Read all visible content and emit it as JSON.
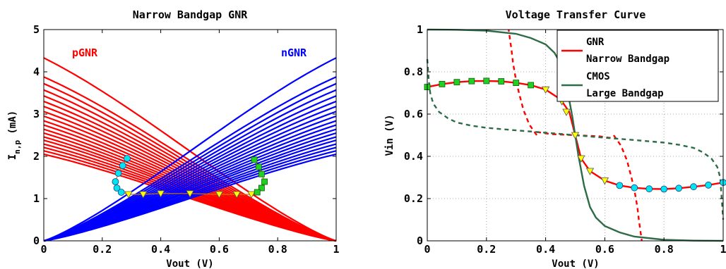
{
  "chart_data": [
    {
      "type": "line",
      "title": "Narrow Bandgap GNR",
      "xlabel": "Vout (V)",
      "ylabel": "I",
      "ylabel_sub": "n,p",
      "ylabel_unit": " (mA)",
      "xlim": [
        0,
        1
      ],
      "ylim": [
        0,
        5
      ],
      "x_ticks": [
        0,
        0.2,
        0.4,
        0.6,
        0.8,
        1
      ],
      "x_tick_labels": [
        "0",
        "0.2",
        "0.4",
        "0.6",
        "0.8",
        "1"
      ],
      "y_ticks": [
        0,
        1,
        2,
        3,
        4,
        5
      ],
      "y_tick_labels": [
        "0",
        "1",
        "2",
        "3",
        "4",
        "5"
      ],
      "grid": false,
      "series": [
        {
          "name": "pGNR",
          "color": "#ff0000",
          "start_values_at_x0": [
            2.05,
            2.13,
            2.21,
            2.29,
            2.38,
            2.46,
            2.55,
            2.64,
            2.74,
            2.84,
            2.95,
            3.06,
            3.18,
            3.3,
            3.43,
            3.57,
            3.72,
            3.88,
            4.33
          ],
          "end_value_at_x1": 0
        },
        {
          "name": "nGNR",
          "color": "#0000ff",
          "start_value_at_x0": 0,
          "end_values_at_x1": [
            2.05,
            2.13,
            2.21,
            2.29,
            2.38,
            2.46,
            2.55,
            2.64,
            2.74,
            2.84,
            2.95,
            3.06,
            3.18,
            3.3,
            3.43,
            3.57,
            3.72,
            3.88,
            4.33
          ]
        }
      ],
      "markers": {
        "cyan_circles": [
          [
            0.285,
            1.95
          ],
          [
            0.27,
            1.78
          ],
          [
            0.255,
            1.6
          ],
          [
            0.245,
            1.4
          ],
          [
            0.25,
            1.25
          ],
          [
            0.265,
            1.15
          ]
        ],
        "yellow_triangles": [
          [
            0.29,
            1.1
          ],
          [
            0.34,
            1.1
          ],
          [
            0.4,
            1.12
          ],
          [
            0.5,
            1.12
          ],
          [
            0.6,
            1.1
          ],
          [
            0.66,
            1.1
          ],
          [
            0.71,
            1.1
          ]
        ],
        "green_squares": [
          [
            0.72,
            1.92
          ],
          [
            0.735,
            1.75
          ],
          [
            0.745,
            1.58
          ],
          [
            0.755,
            1.4
          ],
          [
            0.745,
            1.25
          ],
          [
            0.73,
            1.15
          ]
        ]
      },
      "annotations": [
        {
          "text": "pGNR",
          "x": 0.14,
          "y": 4.45,
          "color": "#ff0000"
        },
        {
          "text": "nGNR",
          "x": 0.86,
          "y": 4.45,
          "color": "#0000ff"
        }
      ]
    },
    {
      "type": "line",
      "title": "Voltage Transfer Curve",
      "xlabel": "Vout (V)",
      "ylabel": "Vin (V)",
      "xlim": [
        0,
        1
      ],
      "ylim": [
        0,
        1
      ],
      "x_ticks": [
        0,
        0.2,
        0.4,
        0.6,
        0.8,
        1
      ],
      "x_tick_labels": [
        "0",
        "0.2",
        "0.4",
        "0.6",
        "0.8",
        "1"
      ],
      "y_ticks": [
        0,
        0.2,
        0.4,
        0.6,
        0.8,
        1
      ],
      "y_tick_labels": [
        "0",
        "0.2",
        "0.4",
        "0.6",
        "0.8",
        "1"
      ],
      "grid": true,
      "legend": {
        "placement": "top-right",
        "entries": [
          {
            "lines": [
              "GNR",
              "Narrow Bandgap"
            ],
            "color": "#ff0000"
          },
          {
            "lines": [
              "CMOS",
              "Large Bandgap"
            ],
            "color": "#2e6b47"
          }
        ]
      },
      "series": [
        {
          "name": "GNR Narrow Bandgap",
          "color": "#ff0000",
          "x": [
            0,
            0.05,
            0.1,
            0.15,
            0.2,
            0.25,
            0.3,
            0.35,
            0.4,
            0.45,
            0.48,
            0.5,
            0.52,
            0.55,
            0.6,
            0.65,
            0.7,
            0.75,
            0.8,
            0.85,
            0.9,
            0.95,
            1.0
          ],
          "y": [
            0.728,
            0.742,
            0.751,
            0.756,
            0.757,
            0.755,
            0.748,
            0.737,
            0.716,
            0.67,
            0.61,
            0.5,
            0.39,
            0.33,
            0.285,
            0.262,
            0.251,
            0.246,
            0.245,
            0.249,
            0.256,
            0.264,
            0.276
          ]
        },
        {
          "name": "GNR pGNR metastable",
          "color": "#ff0000",
          "dashed": true,
          "x": [
            0.37,
            0.345,
            0.325,
            0.31,
            0.3,
            0.29,
            0.285,
            0.28,
            0.275
          ],
          "y": [
            0.5,
            0.55,
            0.62,
            0.7,
            0.76,
            0.84,
            0.9,
            0.95,
            1.0
          ]
        },
        {
          "name": "GNR center",
          "color": "#ff0000",
          "dashed": true,
          "x": [
            0.37,
            0.42,
            0.5,
            0.58,
            0.63
          ],
          "y": [
            0.515,
            0.505,
            0.5,
            0.495,
            0.485
          ]
        },
        {
          "name": "GNR nGNR metastable",
          "color": "#ff0000",
          "dashed": true,
          "x": [
            0.63,
            0.655,
            0.675,
            0.69,
            0.7,
            0.71,
            0.715,
            0.72,
            0.725
          ],
          "y": [
            0.5,
            0.45,
            0.38,
            0.3,
            0.24,
            0.16,
            0.1,
            0.05,
            0.0
          ]
        },
        {
          "name": "CMOS Large Bandgap",
          "color": "#2e6b47",
          "x": [
            0,
            0.1,
            0.2,
            0.3,
            0.35,
            0.4,
            0.43,
            0.45,
            0.47,
            0.49,
            0.5,
            0.51,
            0.53,
            0.55,
            0.57,
            0.6,
            0.65,
            0.7,
            0.8,
            0.9,
            1.0
          ],
          "y": [
            1.0,
            0.999,
            0.995,
            0.98,
            0.96,
            0.93,
            0.89,
            0.84,
            0.74,
            0.59,
            0.5,
            0.41,
            0.26,
            0.16,
            0.11,
            0.07,
            0.04,
            0.02,
            0.005,
            0.001,
            0.0
          ]
        },
        {
          "name": "CMOS dashed lower",
          "color": "#2e6b47",
          "dashed": true,
          "x": [
            0.0,
            0.005,
            0.01,
            0.02,
            0.04,
            0.07,
            0.1,
            0.15,
            0.2,
            0.3,
            0.4,
            0.5
          ],
          "y": [
            0.86,
            0.76,
            0.7,
            0.65,
            0.61,
            0.58,
            0.56,
            0.545,
            0.535,
            0.523,
            0.512,
            0.5
          ]
        },
        {
          "name": "CMOS dashed upper",
          "color": "#2e6b47",
          "dashed": true,
          "x": [
            0.5,
            0.6,
            0.7,
            0.8,
            0.85,
            0.9,
            0.93,
            0.96,
            0.98,
            0.99,
            1.0
          ],
          "y": [
            0.5,
            0.488,
            0.477,
            0.465,
            0.455,
            0.44,
            0.42,
            0.39,
            0.35,
            0.3,
            0.1
          ]
        }
      ],
      "markers": {
        "green_squares": [
          [
            0.0,
            0.728
          ],
          [
            0.05,
            0.742
          ],
          [
            0.1,
            0.751
          ],
          [
            0.15,
            0.756
          ],
          [
            0.2,
            0.757
          ],
          [
            0.25,
            0.755
          ],
          [
            0.3,
            0.748
          ],
          [
            0.35,
            0.737
          ]
        ],
        "yellow_triangles": [
          [
            0.4,
            0.716
          ],
          [
            0.455,
            0.66
          ],
          [
            0.47,
            0.61
          ],
          [
            0.5,
            0.5
          ],
          [
            0.52,
            0.39
          ],
          [
            0.55,
            0.33
          ],
          [
            0.6,
            0.285
          ]
        ],
        "cyan_circles": [
          [
            0.65,
            0.262
          ],
          [
            0.7,
            0.251
          ],
          [
            0.75,
            0.246
          ],
          [
            0.8,
            0.245
          ],
          [
            0.85,
            0.249
          ],
          [
            0.9,
            0.256
          ],
          [
            0.95,
            0.264
          ],
          [
            1.0,
            0.276
          ]
        ]
      }
    }
  ]
}
